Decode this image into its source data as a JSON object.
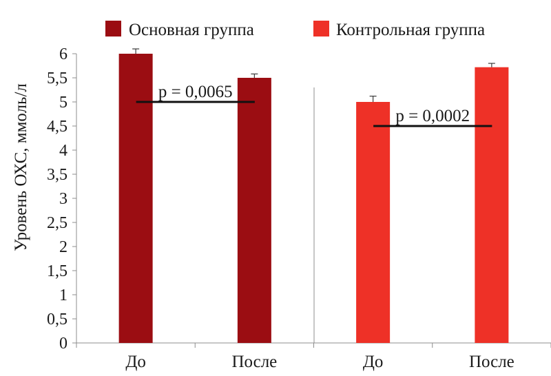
{
  "chart_data": {
    "type": "bar",
    "ylabel": "Уровень ОХС, ммоль/л",
    "ylim": [
      0,
      6
    ],
    "yticks": [
      "0",
      "0,5",
      "1",
      "1,5",
      "2",
      "2,5",
      "3",
      "3,5",
      "4",
      "4,5",
      "5",
      "5,5",
      "6"
    ],
    "categories": [
      "До",
      "После",
      "До",
      "После"
    ],
    "series": [
      {
        "name": "Основная группа",
        "color": "#9b0d12",
        "values": [
          6.0,
          5.5,
          null,
          null
        ],
        "errors": [
          0.1,
          0.08,
          null,
          null
        ]
      },
      {
        "name": "Контрольная группа",
        "color": "#ee3127",
        "values": [
          null,
          null,
          5.0,
          5.72
        ],
        "errors": [
          null,
          null,
          0.12,
          0.08
        ]
      }
    ],
    "annotations": [
      {
        "text": "p = 0,0065",
        "y": 5.0,
        "from": 0,
        "to": 1
      },
      {
        "text": "p = 0,0002",
        "y": 4.5,
        "from": 2,
        "to": 3
      }
    ],
    "legend": "top",
    "grid": false
  }
}
